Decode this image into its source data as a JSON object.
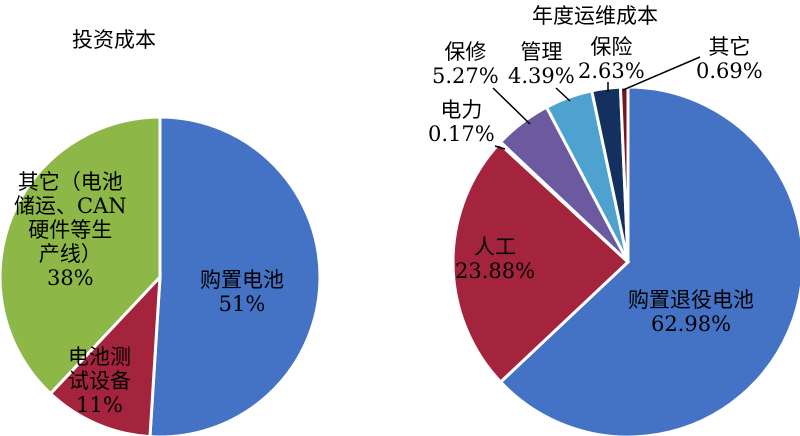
{
  "chart_data": [
    {
      "type": "pie",
      "title": "投资成本",
      "slices": [
        {
          "label": "购置电池",
          "value": 51,
          "value_label": "51%",
          "color": "#4472C4"
        },
        {
          "label": "电池测试设备",
          "value": 11,
          "value_label": "11%",
          "color": "#A5243D"
        },
        {
          "label": "其它（电池储运、CAN硬件等生产线）",
          "value": 38,
          "value_label": "38%",
          "color": "#8DB848"
        }
      ],
      "display_labels": [
        "购置电池",
        "电池测\n试设备",
        "其它（电池\n储运、CAN\n硬件等生\n产线）"
      ]
    },
    {
      "type": "pie",
      "title": "年度运维成本",
      "slices": [
        {
          "label": "购置退役电池",
          "value": 62.98,
          "value_label": "62.98%",
          "color": "#4472C4"
        },
        {
          "label": "人工",
          "value": 23.88,
          "value_label": "23.88%",
          "color": "#A5243D"
        },
        {
          "label": "电力",
          "value": 0.17,
          "value_label": "0.17%",
          "color": "#8DB848"
        },
        {
          "label": "保修",
          "value": 5.27,
          "value_label": "5.27%",
          "color": "#6B5AA0"
        },
        {
          "label": "管理",
          "value": 4.39,
          "value_label": "4.39%",
          "color": "#4EA2D0"
        },
        {
          "label": "保险",
          "value": 2.63,
          "value_label": "2.63%",
          "color": "#13305E"
        },
        {
          "label": "其它",
          "value": 0.69,
          "value_label": "0.69%",
          "color": "#7A1420"
        }
      ]
    }
  ]
}
